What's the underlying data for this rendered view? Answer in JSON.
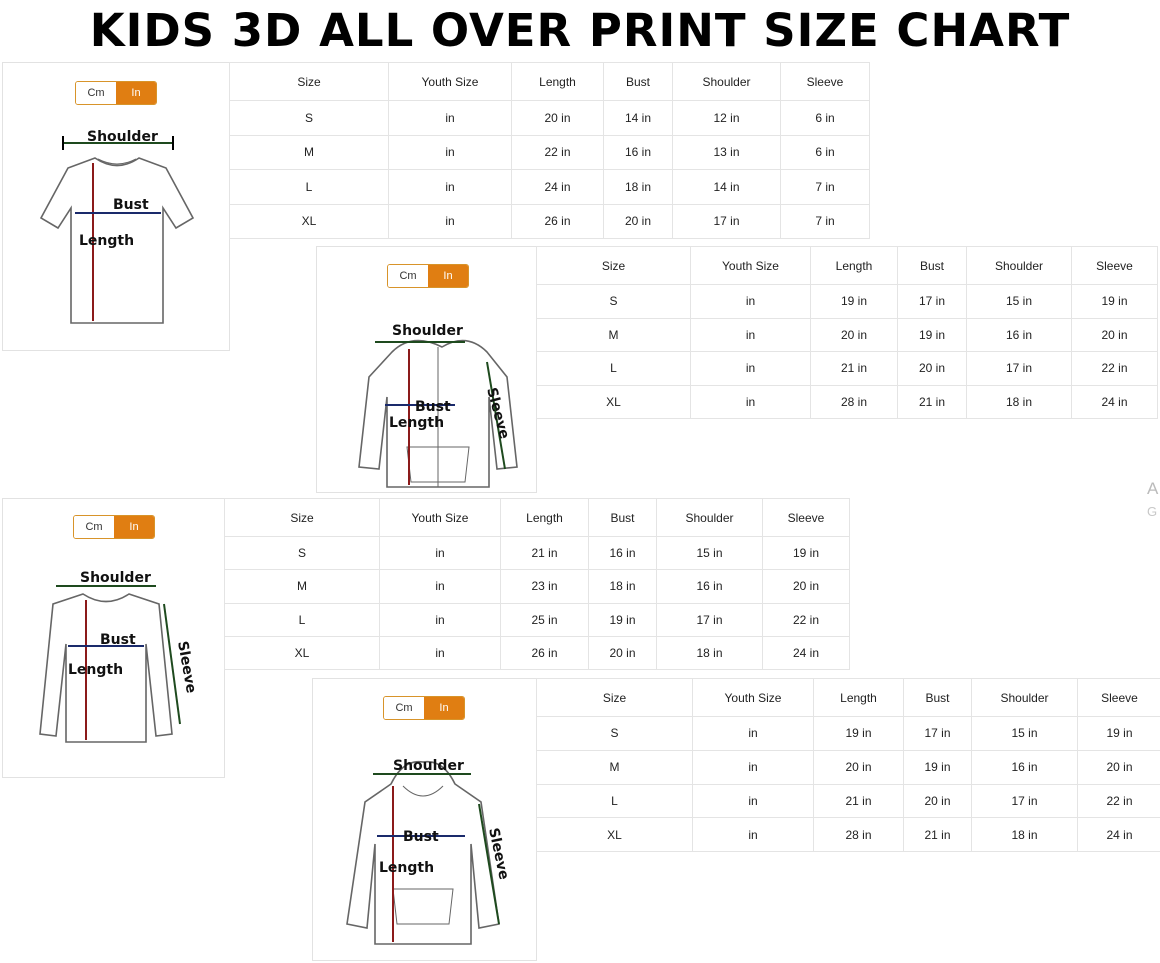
{
  "title": "KIDS 3D ALL OVER PRINT SIZE CHART",
  "toggle": {
    "cm": "Cm",
    "in": "In",
    "active": "In",
    "active_color": "#e07e12",
    "border_color": "#d8942a"
  },
  "watermark": {
    "line1": "A",
    "line2": "G"
  },
  "panels": [
    {
      "garment": "t-shirt",
      "labels": {
        "shoulder": "Shoulder",
        "bust": "Bust",
        "length": "Length"
      },
      "headers": [
        "Size",
        "Youth Size",
        "Length",
        "Bust",
        "Shoulder",
        "Sleeve"
      ],
      "rows": [
        [
          "S",
          "in",
          "20 in",
          "14 in",
          "12 in",
          "6 in"
        ],
        [
          "M",
          "in",
          "22 in",
          "16 in",
          "13 in",
          "6 in"
        ],
        [
          "L",
          "in",
          "24 in",
          "18 in",
          "14 in",
          "7 in"
        ],
        [
          "XL",
          "in",
          "26 in",
          "20 in",
          "17 in",
          "7 in"
        ]
      ]
    },
    {
      "garment": "zip-hoodie",
      "labels": {
        "shoulder": "Shoulder",
        "bust": "Bust",
        "length": "Length",
        "sleeve": "Sleeve"
      },
      "headers": [
        "Size",
        "Youth Size",
        "Length",
        "Bust",
        "Shoulder",
        "Sleeve"
      ],
      "rows": [
        [
          "S",
          "in",
          "19 in",
          "17 in",
          "15 in",
          "19 in"
        ],
        [
          "M",
          "in",
          "20 in",
          "19 in",
          "16 in",
          "20 in"
        ],
        [
          "L",
          "in",
          "21 in",
          "20 in",
          "17 in",
          "22 in"
        ],
        [
          "XL",
          "in",
          "28 in",
          "21 in",
          "18 in",
          "24 in"
        ]
      ]
    },
    {
      "garment": "long-sleeve-shirt",
      "labels": {
        "shoulder": "Shoulder",
        "bust": "Bust",
        "length": "Length",
        "sleeve": "Sleeve"
      },
      "headers": [
        "Size",
        "Youth Size",
        "Length",
        "Bust",
        "Shoulder",
        "Sleeve"
      ],
      "rows": [
        [
          "S",
          "in",
          "21 in",
          "16 in",
          "15 in",
          "19 in"
        ],
        [
          "M",
          "in",
          "23 in",
          "18 in",
          "16 in",
          "20 in"
        ],
        [
          "L",
          "in",
          "25 in",
          "19 in",
          "17 in",
          "22 in"
        ],
        [
          "XL",
          "in",
          "26 in",
          "20 in",
          "18 in",
          "24 in"
        ]
      ]
    },
    {
      "garment": "pullover-hoodie",
      "labels": {
        "shoulder": "Shoulder",
        "bust": "Bust",
        "length": "Length",
        "sleeve": "Sleeve"
      },
      "headers": [
        "Size",
        "Youth Size",
        "Length",
        "Bust",
        "Shoulder",
        "Sleeve"
      ],
      "rows": [
        [
          "S",
          "in",
          "19 in",
          "17 in",
          "15 in",
          "19 in"
        ],
        [
          "M",
          "in",
          "20 in",
          "19 in",
          "16 in",
          "20 in"
        ],
        [
          "L",
          "in",
          "21 in",
          "20 in",
          "17 in",
          "22 in"
        ],
        [
          "XL",
          "in",
          "28 in",
          "21 in",
          "18 in",
          "24 in"
        ]
      ]
    }
  ]
}
